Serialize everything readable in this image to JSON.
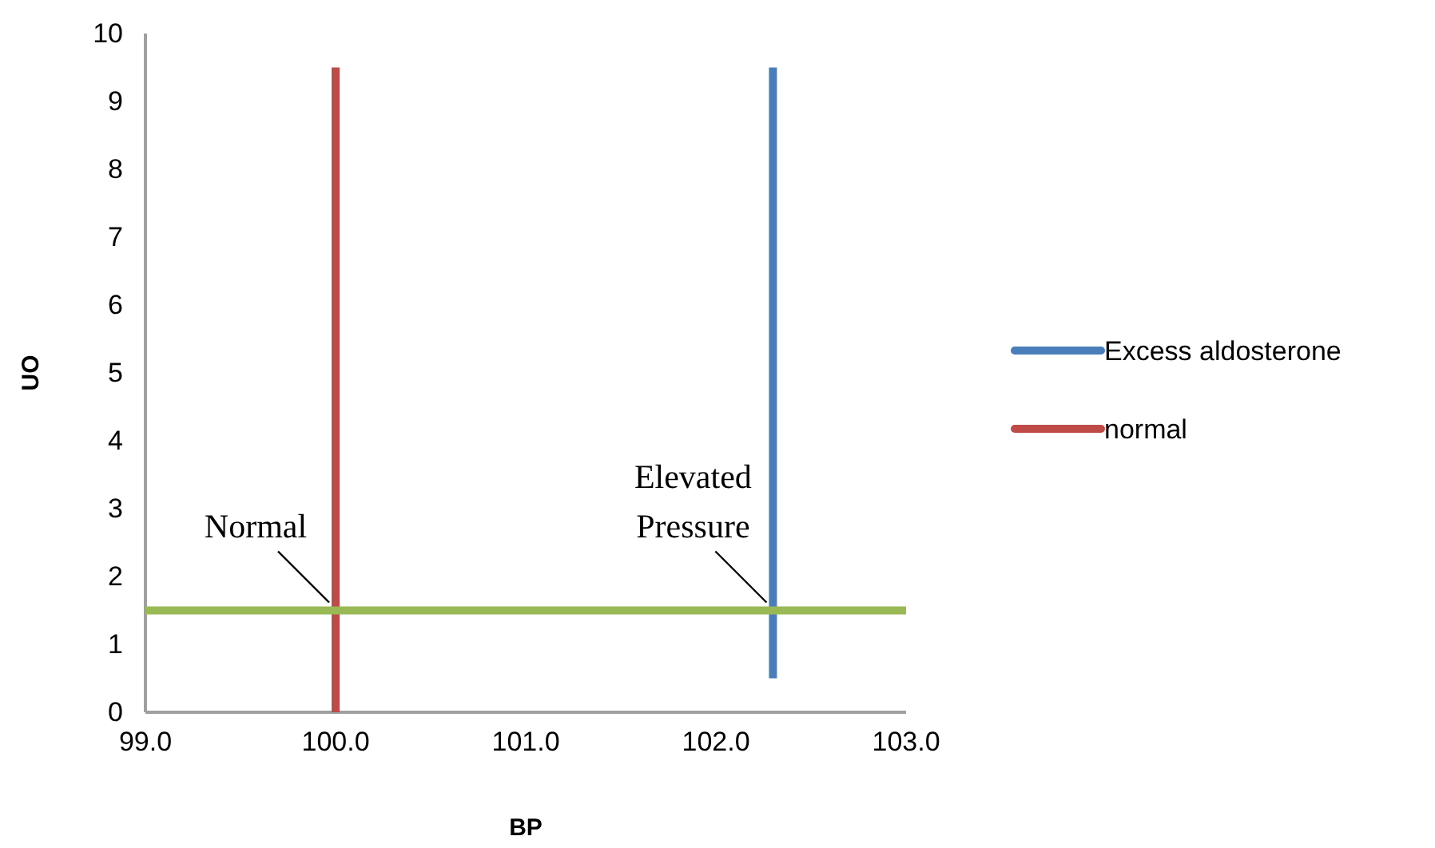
{
  "chart_data": {
    "type": "line",
    "xlabel": "BP",
    "ylabel": "UO",
    "xlim": [
      99,
      103
    ],
    "xticks": [
      {
        "value": 99,
        "label": "99.0"
      },
      {
        "value": 100,
        "label": "100.0"
      },
      {
        "value": 101,
        "label": "101.0"
      },
      {
        "value": 102,
        "label": "102.0"
      },
      {
        "value": 103,
        "label": "103.0"
      }
    ],
    "ylim": [
      0,
      10
    ],
    "yticks": [
      0,
      1,
      2,
      3,
      4,
      5,
      6,
      7,
      8,
      9,
      10
    ],
    "series": [
      {
        "name": "Excess aldosterone",
        "color": "#4a7ebb",
        "x": [
          102.3,
          102.3
        ],
        "values": [
          0.5,
          9.5
        ]
      },
      {
        "name": "normal",
        "color": "#be4b48",
        "x": [
          100.0,
          100.0
        ],
        "values": [
          0,
          9.5
        ]
      },
      {
        "color": "#98b954",
        "x": [
          99,
          103
        ],
        "values": [
          1.5,
          1.5
        ]
      }
    ],
    "annotations": [
      {
        "text": "Normal",
        "x": 100.0,
        "y": 1.5
      },
      {
        "text": "Elevated Pressure",
        "x": 102.3,
        "y": 1.5
      }
    ],
    "grid": false,
    "legend": "right",
    "marker": "none",
    "line_style": "solid"
  }
}
